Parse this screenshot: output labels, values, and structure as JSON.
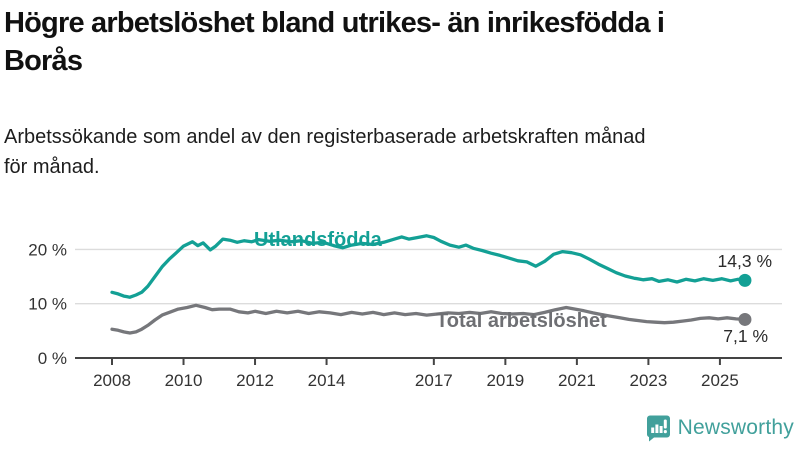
{
  "header": {
    "title_lines": [
      "Högre arbetslöshet bland utrikes- än inrikesfödda i",
      "Borås"
    ],
    "subtitle_lines": [
      "Arbetssökande som andel av den registerbaserade arbetskraften månad",
      "för månad."
    ]
  },
  "logo": {
    "text": "Newsworthy",
    "color": "#41a09b"
  },
  "colors": {
    "series_foreign": "#13a095",
    "series_total": "#76777b",
    "gridline": "#dcdcdc",
    "axis": "#444444",
    "tick_label": "#333333",
    "end_label": "#2b2b2b"
  },
  "chart_data": {
    "type": "line",
    "title": "Högre arbetslöshet bland utrikes- än inrikesfödda i Borås",
    "subtitle": "Arbetssökande som andel av den registerbaserade arbetskraften månad för månad.",
    "xlabel": "",
    "ylabel": "",
    "ylim": [
      0,
      24
    ],
    "grid": true,
    "legend_position": "inline",
    "x_ticks": [
      2008,
      2010,
      2012,
      2014,
      2017,
      2019,
      2021,
      2023,
      2025
    ],
    "y_ticks": [
      {
        "value": 0,
        "label": "0 %"
      },
      {
        "value": 10,
        "label": "10 %"
      },
      {
        "value": 20,
        "label": "20 %"
      }
    ],
    "series": [
      {
        "name": "Utlandsfödda",
        "color": "#13a095",
        "end_label": "14,3 %",
        "end_value": 14.3,
        "points": [
          [
            2008.0,
            12.1
          ],
          [
            2008.17,
            11.8
          ],
          [
            2008.33,
            11.4
          ],
          [
            2008.5,
            11.2
          ],
          [
            2008.67,
            11.6
          ],
          [
            2008.83,
            12.1
          ],
          [
            2009.0,
            13.2
          ],
          [
            2009.2,
            15.0
          ],
          [
            2009.4,
            16.8
          ],
          [
            2009.6,
            18.2
          ],
          [
            2009.8,
            19.4
          ],
          [
            2010.0,
            20.6
          ],
          [
            2010.25,
            21.4
          ],
          [
            2010.4,
            20.7
          ],
          [
            2010.55,
            21.2
          ],
          [
            2010.75,
            19.9
          ],
          [
            2010.9,
            20.6
          ],
          [
            2011.1,
            21.9
          ],
          [
            2011.3,
            21.7
          ],
          [
            2011.5,
            21.3
          ],
          [
            2011.7,
            21.6
          ],
          [
            2011.9,
            21.4
          ],
          [
            2012.1,
            21.8
          ],
          [
            2012.4,
            21.5
          ],
          [
            2012.7,
            21.7
          ],
          [
            2013.0,
            21.4
          ],
          [
            2013.3,
            21.6
          ],
          [
            2013.6,
            21.1
          ],
          [
            2013.9,
            21.3
          ],
          [
            2014.2,
            20.7
          ],
          [
            2014.45,
            20.3
          ],
          [
            2014.7,
            20.8
          ],
          [
            2015.0,
            21.1
          ],
          [
            2015.3,
            20.9
          ],
          [
            2015.6,
            21.3
          ],
          [
            2015.9,
            21.9
          ],
          [
            2016.1,
            22.3
          ],
          [
            2016.3,
            21.9
          ],
          [
            2016.55,
            22.2
          ],
          [
            2016.8,
            22.5
          ],
          [
            2017.0,
            22.2
          ],
          [
            2017.2,
            21.5
          ],
          [
            2017.45,
            20.8
          ],
          [
            2017.7,
            20.4
          ],
          [
            2017.9,
            20.8
          ],
          [
            2018.1,
            20.2
          ],
          [
            2018.35,
            19.8
          ],
          [
            2018.6,
            19.3
          ],
          [
            2018.85,
            18.9
          ],
          [
            2019.1,
            18.4
          ],
          [
            2019.35,
            17.9
          ],
          [
            2019.6,
            17.7
          ],
          [
            2019.85,
            16.9
          ],
          [
            2020.1,
            17.8
          ],
          [
            2020.35,
            19.1
          ],
          [
            2020.6,
            19.6
          ],
          [
            2020.85,
            19.4
          ],
          [
            2021.1,
            19.0
          ],
          [
            2021.35,
            18.2
          ],
          [
            2021.6,
            17.3
          ],
          [
            2021.85,
            16.5
          ],
          [
            2022.1,
            15.7
          ],
          [
            2022.35,
            15.1
          ],
          [
            2022.6,
            14.7
          ],
          [
            2022.85,
            14.4
          ],
          [
            2023.1,
            14.6
          ],
          [
            2023.3,
            14.1
          ],
          [
            2023.55,
            14.4
          ],
          [
            2023.8,
            14.0
          ],
          [
            2024.05,
            14.5
          ],
          [
            2024.3,
            14.2
          ],
          [
            2024.55,
            14.6
          ],
          [
            2024.8,
            14.3
          ],
          [
            2025.05,
            14.6
          ],
          [
            2025.3,
            14.2
          ],
          [
            2025.5,
            14.5
          ],
          [
            2025.7,
            14.3
          ]
        ]
      },
      {
        "name": "Total arbetslöshet",
        "color": "#76777b",
        "end_label": "7,1 %",
        "end_value": 7.1,
        "points": [
          [
            2008.0,
            5.3
          ],
          [
            2008.17,
            5.1
          ],
          [
            2008.33,
            4.8
          ],
          [
            2008.5,
            4.6
          ],
          [
            2008.67,
            4.8
          ],
          [
            2008.83,
            5.3
          ],
          [
            2009.0,
            6.0
          ],
          [
            2009.2,
            7.0
          ],
          [
            2009.4,
            7.9
          ],
          [
            2009.6,
            8.4
          ],
          [
            2009.85,
            9.0
          ],
          [
            2010.1,
            9.3
          ],
          [
            2010.35,
            9.7
          ],
          [
            2010.6,
            9.3
          ],
          [
            2010.8,
            8.9
          ],
          [
            2011.0,
            9.0
          ],
          [
            2011.3,
            9.0
          ],
          [
            2011.55,
            8.5
          ],
          [
            2011.8,
            8.3
          ],
          [
            2012.0,
            8.6
          ],
          [
            2012.3,
            8.2
          ],
          [
            2012.6,
            8.6
          ],
          [
            2012.9,
            8.3
          ],
          [
            2013.2,
            8.6
          ],
          [
            2013.5,
            8.2
          ],
          [
            2013.8,
            8.5
          ],
          [
            2014.1,
            8.3
          ],
          [
            2014.4,
            8.0
          ],
          [
            2014.7,
            8.4
          ],
          [
            2015.0,
            8.1
          ],
          [
            2015.3,
            8.4
          ],
          [
            2015.6,
            8.0
          ],
          [
            2015.9,
            8.3
          ],
          [
            2016.2,
            8.0
          ],
          [
            2016.5,
            8.2
          ],
          [
            2016.8,
            7.9
          ],
          [
            2017.1,
            8.1
          ],
          [
            2017.4,
            8.3
          ],
          [
            2017.7,
            8.2
          ],
          [
            2018.0,
            8.4
          ],
          [
            2018.3,
            8.2
          ],
          [
            2018.6,
            8.5
          ],
          [
            2018.9,
            8.2
          ],
          [
            2019.2,
            8.1
          ],
          [
            2019.5,
            8.2
          ],
          [
            2019.8,
            8.0
          ],
          [
            2020.1,
            8.4
          ],
          [
            2020.4,
            8.9
          ],
          [
            2020.7,
            9.3
          ],
          [
            2020.95,
            9.0
          ],
          [
            2021.2,
            8.7
          ],
          [
            2021.45,
            8.3
          ],
          [
            2021.7,
            8.0
          ],
          [
            2021.95,
            7.7
          ],
          [
            2022.2,
            7.4
          ],
          [
            2022.45,
            7.1
          ],
          [
            2022.7,
            6.9
          ],
          [
            2022.95,
            6.7
          ],
          [
            2023.2,
            6.6
          ],
          [
            2023.45,
            6.5
          ],
          [
            2023.7,
            6.6
          ],
          [
            2023.95,
            6.8
          ],
          [
            2024.2,
            7.0
          ],
          [
            2024.45,
            7.3
          ],
          [
            2024.7,
            7.4
          ],
          [
            2024.95,
            7.2
          ],
          [
            2025.2,
            7.4
          ],
          [
            2025.45,
            7.2
          ],
          [
            2025.7,
            7.1
          ]
        ]
      }
    ]
  }
}
